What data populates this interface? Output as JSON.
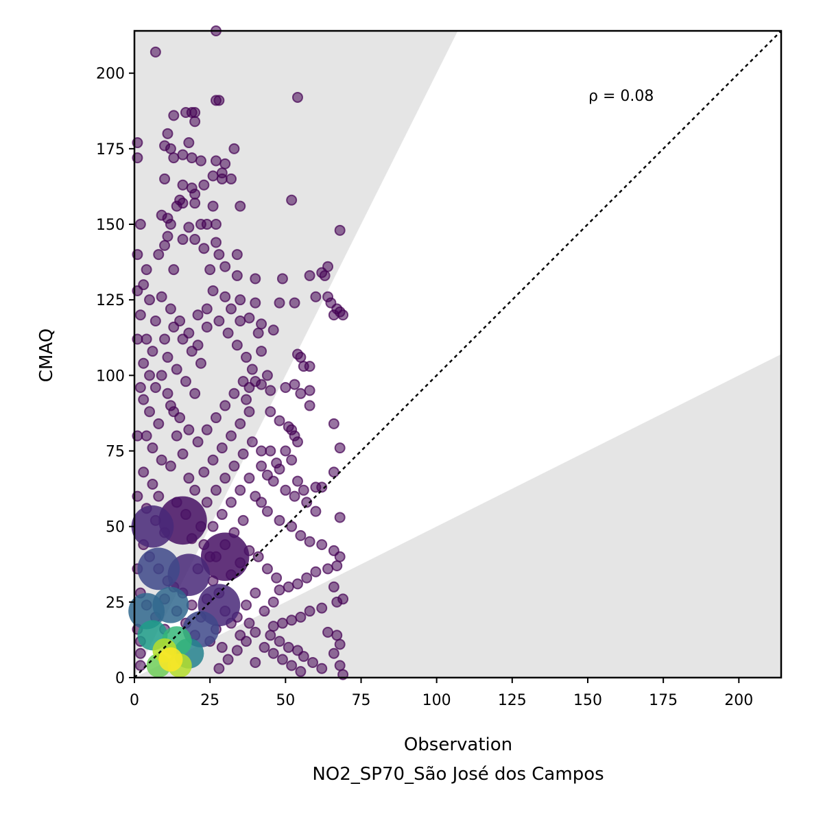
{
  "chart_data": {
    "type": "scatter",
    "title": "",
    "xlabel": "Observation",
    "xlabel_sub": "NO2_SP70_São José dos Campos",
    "ylabel": "CMAQ",
    "xlim": [
      0,
      214
    ],
    "ylim": [
      0,
      214
    ],
    "xticks": [
      0,
      25,
      50,
      75,
      100,
      125,
      150,
      175,
      200
    ],
    "yticks": [
      0,
      25,
      50,
      75,
      100,
      125,
      150,
      175,
      200
    ],
    "grid": false,
    "annotation": "ρ = 0.08",
    "reference_line": "1:1",
    "shaded_bands": [
      {
        "name": "upper",
        "slope": 2.0
      },
      {
        "name": "lower",
        "slope": 0.5
      }
    ],
    "colormap": "viridis",
    "point_color_low_density": "#440154",
    "point_color_high_density": "#fde725",
    "band_color": "#e5e5e5",
    "points": [
      [
        1,
        177
      ],
      [
        1,
        172
      ],
      [
        2,
        150
      ],
      [
        1,
        140
      ],
      [
        7,
        207
      ],
      [
        27,
        214
      ],
      [
        27,
        191
      ],
      [
        28,
        191
      ],
      [
        54,
        192
      ],
      [
        13,
        186
      ],
      [
        19,
        187
      ],
      [
        17,
        187
      ],
      [
        20,
        187
      ],
      [
        20,
        184
      ],
      [
        11,
        180
      ],
      [
        10,
        176
      ],
      [
        12,
        175
      ],
      [
        13,
        172
      ],
      [
        18,
        177
      ],
      [
        19,
        172
      ],
      [
        16,
        173
      ],
      [
        22,
        171
      ],
      [
        27,
        171
      ],
      [
        30,
        170
      ],
      [
        29,
        167
      ],
      [
        26,
        166
      ],
      [
        33,
        175
      ],
      [
        29,
        165
      ],
      [
        32,
        165
      ],
      [
        10,
        165
      ],
      [
        23,
        163
      ],
      [
        19,
        162
      ],
      [
        16,
        163
      ],
      [
        20,
        160
      ],
      [
        15,
        158
      ],
      [
        16,
        157
      ],
      [
        14,
        156
      ],
      [
        26,
        156
      ],
      [
        20,
        157
      ],
      [
        35,
        156
      ],
      [
        52,
        158
      ],
      [
        9,
        153
      ],
      [
        11,
        152
      ],
      [
        12,
        150
      ],
      [
        18,
        149
      ],
      [
        22,
        150
      ],
      [
        24,
        150
      ],
      [
        27,
        150
      ],
      [
        68,
        148
      ],
      [
        11,
        146
      ],
      [
        10,
        143
      ],
      [
        16,
        145
      ],
      [
        20,
        145
      ],
      [
        23,
        142
      ],
      [
        27,
        144
      ],
      [
        28,
        140
      ],
      [
        34,
        140
      ],
      [
        8,
        140
      ],
      [
        4,
        135
      ],
      [
        13,
        135
      ],
      [
        25,
        135
      ],
      [
        30,
        136
      ],
      [
        34,
        133
      ],
      [
        40,
        132
      ],
      [
        49,
        132
      ],
      [
        58,
        133
      ],
      [
        63,
        133
      ],
      [
        64,
        136
      ],
      [
        62,
        134
      ],
      [
        60,
        126
      ],
      [
        64,
        126
      ],
      [
        65,
        124
      ],
      [
        66,
        120
      ],
      [
        67,
        122
      ],
      [
        68,
        121
      ],
      [
        69,
        120
      ],
      [
        48,
        124
      ],
      [
        53,
        124
      ],
      [
        40,
        124
      ],
      [
        35,
        125
      ],
      [
        38,
        119
      ],
      [
        42,
        117
      ],
      [
        46,
        115
      ],
      [
        41,
        114
      ],
      [
        42,
        108
      ],
      [
        54,
        107
      ],
      [
        55,
        106
      ],
      [
        56,
        103
      ],
      [
        58,
        103
      ],
      [
        53,
        97
      ],
      [
        55,
        94
      ],
      [
        58,
        95
      ],
      [
        50,
        96
      ],
      [
        45,
        95
      ],
      [
        42,
        97
      ],
      [
        40,
        98
      ],
      [
        44,
        100
      ],
      [
        38,
        96
      ],
      [
        37,
        92
      ],
      [
        45,
        88
      ],
      [
        58,
        90
      ],
      [
        48,
        85
      ],
      [
        51,
        83
      ],
      [
        52,
        82
      ],
      [
        53,
        80
      ],
      [
        54,
        78
      ],
      [
        66,
        84
      ],
      [
        68,
        76
      ],
      [
        50,
        75
      ],
      [
        52,
        72
      ],
      [
        45,
        75
      ],
      [
        42,
        75
      ],
      [
        47,
        71
      ],
      [
        42,
        70
      ],
      [
        44,
        67
      ],
      [
        48,
        69
      ],
      [
        54,
        65
      ],
      [
        56,
        62
      ],
      [
        60,
        63
      ],
      [
        62,
        63
      ],
      [
        66,
        68
      ],
      [
        68,
        53
      ],
      [
        60,
        55
      ],
      [
        57,
        58
      ],
      [
        53,
        60
      ],
      [
        50,
        62
      ],
      [
        46,
        65
      ],
      [
        40,
        60
      ],
      [
        42,
        58
      ],
      [
        44,
        55
      ],
      [
        48,
        52
      ],
      [
        52,
        50
      ],
      [
        55,
        47
      ],
      [
        58,
        45
      ],
      [
        62,
        44
      ],
      [
        66,
        42
      ],
      [
        68,
        40
      ],
      [
        67,
        37
      ],
      [
        64,
        36
      ],
      [
        60,
        35
      ],
      [
        57,
        33
      ],
      [
        54,
        31
      ],
      [
        51,
        30
      ],
      [
        48,
        29
      ],
      [
        66,
        30
      ],
      [
        69,
        26
      ],
      [
        67,
        25
      ],
      [
        62,
        23
      ],
      [
        58,
        22
      ],
      [
        55,
        20
      ],
      [
        52,
        19
      ],
      [
        49,
        18
      ],
      [
        46,
        17
      ],
      [
        64,
        15
      ],
      [
        67,
        14
      ],
      [
        68,
        11
      ],
      [
        66,
        8
      ],
      [
        68,
        4
      ],
      [
        69,
        1
      ],
      [
        62,
        3
      ],
      [
        59,
        5
      ],
      [
        56,
        7
      ],
      [
        54,
        9
      ],
      [
        51,
        10
      ],
      [
        48,
        12
      ],
      [
        45,
        14
      ],
      [
        55,
        2
      ],
      [
        52,
        4
      ],
      [
        49,
        6
      ],
      [
        46,
        8
      ],
      [
        43,
        10
      ],
      [
        40,
        5
      ],
      [
        30,
        126
      ],
      [
        32,
        122
      ],
      [
        35,
        118
      ],
      [
        26,
        128
      ],
      [
        24,
        122
      ],
      [
        28,
        118
      ],
      [
        31,
        114
      ],
      [
        34,
        110
      ],
      [
        37,
        106
      ],
      [
        39,
        102
      ],
      [
        36,
        98
      ],
      [
        33,
        94
      ],
      [
        30,
        90
      ],
      [
        27,
        86
      ],
      [
        24,
        82
      ],
      [
        21,
        78
      ],
      [
        38,
        88
      ],
      [
        35,
        84
      ],
      [
        32,
        80
      ],
      [
        29,
        76
      ],
      [
        26,
        72
      ],
      [
        23,
        68
      ],
      [
        39,
        78
      ],
      [
        36,
        74
      ],
      [
        33,
        70
      ],
      [
        30,
        66
      ],
      [
        27,
        62
      ],
      [
        24,
        58
      ],
      [
        38,
        66
      ],
      [
        35,
        62
      ],
      [
        32,
        58
      ],
      [
        29,
        54
      ],
      [
        26,
        50
      ],
      [
        36,
        52
      ],
      [
        33,
        48
      ],
      [
        30,
        44
      ],
      [
        27,
        40
      ],
      [
        38,
        42
      ],
      [
        35,
        38
      ],
      [
        32,
        34
      ],
      [
        41,
        40
      ],
      [
        44,
        36
      ],
      [
        47,
        33
      ],
      [
        40,
        28
      ],
      [
        37,
        24
      ],
      [
        34,
        20
      ],
      [
        43,
        22
      ],
      [
        46,
        25
      ],
      [
        40,
        15
      ],
      [
        37,
        12
      ],
      [
        34,
        9
      ],
      [
        31,
        6
      ],
      [
        28,
        3
      ],
      [
        3,
        130
      ],
      [
        5,
        125
      ],
      [
        7,
        118
      ],
      [
        4,
        112
      ],
      [
        6,
        108
      ],
      [
        3,
        104
      ],
      [
        5,
        100
      ],
      [
        7,
        96
      ],
      [
        3,
        92
      ],
      [
        5,
        88
      ],
      [
        8,
        84
      ],
      [
        4,
        80
      ],
      [
        6,
        76
      ],
      [
        9,
        72
      ],
      [
        3,
        68
      ],
      [
        6,
        64
      ],
      [
        8,
        60
      ],
      [
        4,
        56
      ],
      [
        7,
        52
      ],
      [
        10,
        48
      ],
      [
        3,
        44
      ],
      [
        5,
        40
      ],
      [
        8,
        36
      ],
      [
        11,
        32
      ],
      [
        2,
        28
      ],
      [
        4,
        24
      ],
      [
        7,
        20
      ],
      [
        10,
        16
      ],
      [
        2,
        12
      ],
      [
        9,
        126
      ],
      [
        12,
        122
      ],
      [
        15,
        118
      ],
      [
        18,
        114
      ],
      [
        21,
        110
      ],
      [
        11,
        106
      ],
      [
        14,
        102
      ],
      [
        17,
        98
      ],
      [
        20,
        94
      ],
      [
        12,
        90
      ],
      [
        15,
        86
      ],
      [
        18,
        82
      ],
      [
        21,
        120
      ],
      [
        24,
        116
      ],
      [
        22,
        104
      ],
      [
        19,
        108
      ],
      [
        16,
        112
      ],
      [
        13,
        116
      ],
      [
        10,
        112
      ],
      [
        9,
        100
      ],
      [
        11,
        94
      ],
      [
        13,
        88
      ],
      [
        14,
        80
      ],
      [
        16,
        74
      ],
      [
        12,
        70
      ],
      [
        18,
        66
      ],
      [
        20,
        62
      ],
      [
        14,
        58
      ],
      [
        17,
        54
      ],
      [
        22,
        50
      ],
      [
        19,
        46
      ],
      [
        23,
        44
      ],
      [
        25,
        40
      ],
      [
        21,
        36
      ],
      [
        26,
        32
      ],
      [
        28,
        28
      ],
      [
        24,
        26
      ],
      [
        30,
        22
      ],
      [
        32,
        18
      ],
      [
        27,
        16
      ],
      [
        35,
        14
      ],
      [
        38,
        18
      ],
      [
        29,
        10
      ],
      [
        25,
        12
      ],
      [
        22,
        20
      ],
      [
        19,
        24
      ],
      [
        16,
        28
      ],
      [
        13,
        30
      ],
      [
        10,
        26
      ],
      [
        14,
        22
      ],
      [
        17,
        18
      ],
      [
        20,
        14
      ],
      [
        2,
        4
      ],
      [
        2,
        8
      ],
      [
        1,
        16
      ],
      [
        1,
        36
      ],
      [
        1,
        60
      ],
      [
        1,
        80
      ],
      [
        2,
        96
      ],
      [
        1,
        112
      ],
      [
        2,
        120
      ],
      [
        1,
        128
      ]
    ],
    "density_blobs": [
      {
        "x": 12,
        "y": 6,
        "r": 4,
        "color": "#fde725"
      },
      {
        "x": 10,
        "y": 9,
        "r": 4,
        "color": "#b5de2b"
      },
      {
        "x": 15,
        "y": 4,
        "r": 4,
        "color": "#b5de2b"
      },
      {
        "x": 8,
        "y": 4,
        "r": 4,
        "color": "#6ece58"
      },
      {
        "x": 14,
        "y": 12,
        "r": 5,
        "color": "#35b779"
      },
      {
        "x": 6,
        "y": 14,
        "r": 5,
        "color": "#1f9e89"
      },
      {
        "x": 18,
        "y": 8,
        "r": 5,
        "color": "#26828e"
      },
      {
        "x": 4,
        "y": 22,
        "r": 6,
        "color": "#31688e"
      },
      {
        "x": 12,
        "y": 24,
        "r": 6,
        "color": "#31688e"
      },
      {
        "x": 22,
        "y": 16,
        "r": 6,
        "color": "#3e4989"
      },
      {
        "x": 8,
        "y": 36,
        "r": 7,
        "color": "#3e4989"
      },
      {
        "x": 18,
        "y": 34,
        "r": 7,
        "color": "#482878"
      },
      {
        "x": 28,
        "y": 24,
        "r": 7,
        "color": "#482878"
      },
      {
        "x": 6,
        "y": 50,
        "r": 7,
        "color": "#482878"
      },
      {
        "x": 16,
        "y": 52,
        "r": 8,
        "color": "#471164"
      },
      {
        "x": 30,
        "y": 40,
        "r": 8,
        "color": "#471164"
      }
    ]
  }
}
